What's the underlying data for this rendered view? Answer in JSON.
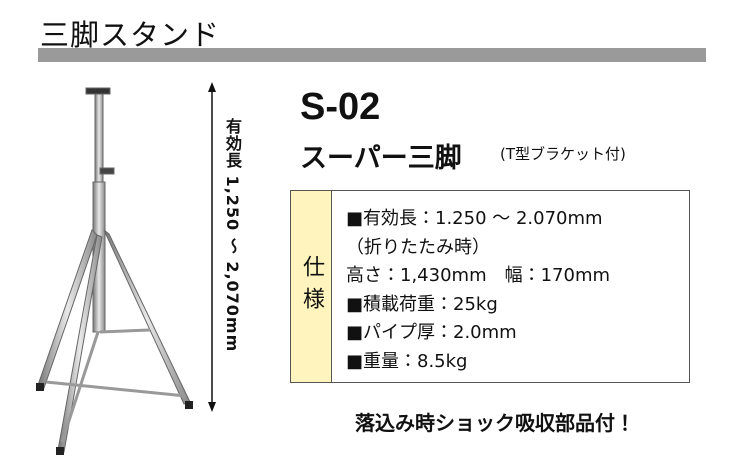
{
  "header": {
    "title": "三脚スタンド"
  },
  "dimension_label": "有効長 1,250 ～ 2,070mm",
  "product": {
    "model": "S-02",
    "name": "スーパー三脚",
    "note": "(T型ブラケット付)"
  },
  "spec": {
    "label": "仕様",
    "lines": [
      "■有効長：1.250 ～ 2.070mm",
      "（折りたたみ時）",
      "高さ：1,430mm　幅：170mm",
      "■積載荷重：25kg",
      "■パイプ厚：2.0mm",
      "■重量：8.5kg"
    ]
  },
  "footer": "落込み時ショック吸収部品付！"
}
